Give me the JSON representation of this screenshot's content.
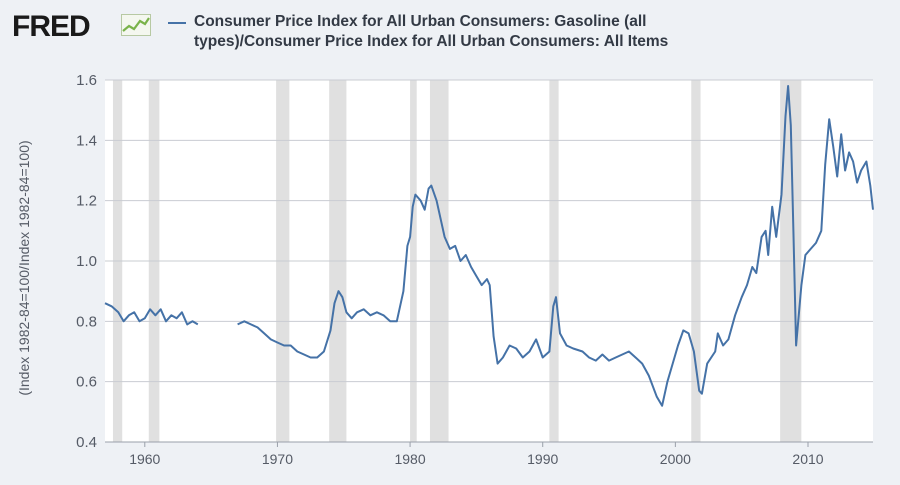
{
  "header": {
    "logo": "FRED",
    "title_line1": "Consumer Price Index for All Urban Consumers: Gasoline (all",
    "title_line2": "types)/Consumer Price Index for All Urban Consumers: All Items"
  },
  "colors": {
    "line": "#4572a7",
    "recession": "#e0e0e0",
    "plot_bg": "#ffffff",
    "frame_bg": "#eef1f5",
    "grid": "#c9ccd2",
    "logo_icon": "#7ab34a"
  },
  "chart_data": {
    "type": "line",
    "title": "Consumer Price Index for All Urban Consumers: Gasoline (all types)/Consumer Price Index for All Urban Consumers: All Items",
    "xlabel": "",
    "ylabel": "(Index 1982-84=100/Index 1982-84=100)",
    "xlim": [
      1957,
      2014.9
    ],
    "ylim": [
      0.4,
      1.6
    ],
    "xticks": [
      1960,
      1970,
      1980,
      1990,
      2000,
      2010
    ],
    "yticks": [
      0.4,
      0.6,
      0.8,
      1.0,
      1.2,
      1.4,
      1.6
    ],
    "ytick_labels": [
      "0.4",
      "0.6",
      "0.8",
      "1.0",
      "1.2",
      "1.4",
      "1.6"
    ],
    "grid": "horizontal",
    "recessions": [
      [
        1957.6,
        1958.3
      ],
      [
        1960.3,
        1961.1
      ],
      [
        1969.9,
        1970.9
      ],
      [
        1973.9,
        1975.2
      ],
      [
        1980.0,
        1980.5
      ],
      [
        1981.5,
        1982.9
      ],
      [
        1990.5,
        1991.2
      ],
      [
        2001.2,
        2001.9
      ],
      [
        2007.9,
        2009.5
      ]
    ],
    "series": [
      {
        "segments": [
          [
            [
              1957.0,
              0.86
            ],
            [
              1957.5,
              0.85
            ],
            [
              1958.0,
              0.83
            ],
            [
              1958.4,
              0.8
            ],
            [
              1958.8,
              0.82
            ],
            [
              1959.2,
              0.83
            ],
            [
              1959.6,
              0.8
            ],
            [
              1960.0,
              0.81
            ],
            [
              1960.4,
              0.84
            ],
            [
              1960.8,
              0.82
            ],
            [
              1961.2,
              0.84
            ],
            [
              1961.6,
              0.8
            ],
            [
              1962.0,
              0.82
            ],
            [
              1962.4,
              0.81
            ],
            [
              1962.8,
              0.83
            ],
            [
              1963.2,
              0.79
            ],
            [
              1963.6,
              0.8
            ],
            [
              1964.0,
              0.79
            ]
          ],
          [
            [
              1967.0,
              0.79
            ],
            [
              1967.5,
              0.8
            ],
            [
              1968.0,
              0.79
            ],
            [
              1968.5,
              0.78
            ],
            [
              1969.0,
              0.76
            ],
            [
              1969.5,
              0.74
            ],
            [
              1970.0,
              0.73
            ],
            [
              1970.5,
              0.72
            ],
            [
              1971.0,
              0.72
            ],
            [
              1971.5,
              0.7
            ],
            [
              1972.0,
              0.69
            ],
            [
              1972.5,
              0.68
            ],
            [
              1973.0,
              0.68
            ],
            [
              1973.5,
              0.7
            ],
            [
              1974.0,
              0.77
            ],
            [
              1974.3,
              0.86
            ],
            [
              1974.6,
              0.9
            ],
            [
              1974.9,
              0.88
            ],
            [
              1975.2,
              0.83
            ],
            [
              1975.6,
              0.81
            ],
            [
              1976.0,
              0.83
            ],
            [
              1976.5,
              0.84
            ],
            [
              1977.0,
              0.82
            ],
            [
              1977.5,
              0.83
            ],
            [
              1978.0,
              0.82
            ],
            [
              1978.5,
              0.8
            ],
            [
              1979.0,
              0.8
            ],
            [
              1979.5,
              0.9
            ],
            [
              1979.8,
              1.05
            ],
            [
              1980.0,
              1.08
            ],
            [
              1980.2,
              1.18
            ],
            [
              1980.4,
              1.22
            ],
            [
              1980.8,
              1.2
            ],
            [
              1981.1,
              1.17
            ],
            [
              1981.4,
              1.24
            ],
            [
              1981.6,
              1.25
            ],
            [
              1982.0,
              1.2
            ],
            [
              1982.3,
              1.14
            ],
            [
              1982.6,
              1.08
            ],
            [
              1983.0,
              1.04
            ],
            [
              1983.4,
              1.05
            ],
            [
              1983.8,
              1.0
            ],
            [
              1984.2,
              1.02
            ],
            [
              1984.6,
              0.98
            ],
            [
              1985.0,
              0.95
            ],
            [
              1985.4,
              0.92
            ],
            [
              1985.8,
              0.94
            ],
            [
              1986.0,
              0.92
            ],
            [
              1986.3,
              0.75
            ],
            [
              1986.6,
              0.66
            ],
            [
              1987.0,
              0.68
            ],
            [
              1987.5,
              0.72
            ],
            [
              1988.0,
              0.71
            ],
            [
              1988.5,
              0.68
            ],
            [
              1989.0,
              0.7
            ],
            [
              1989.5,
              0.74
            ],
            [
              1990.0,
              0.68
            ],
            [
              1990.5,
              0.7
            ],
            [
              1990.8,
              0.85
            ],
            [
              1991.0,
              0.88
            ],
            [
              1991.3,
              0.76
            ],
            [
              1991.8,
              0.72
            ],
            [
              1992.3,
              0.71
            ],
            [
              1993.0,
              0.7
            ],
            [
              1993.5,
              0.68
            ],
            [
              1994.0,
              0.67
            ],
            [
              1994.5,
              0.69
            ],
            [
              1995.0,
              0.67
            ],
            [
              1995.5,
              0.68
            ],
            [
              1996.0,
              0.69
            ],
            [
              1996.5,
              0.7
            ],
            [
              1997.0,
              0.68
            ],
            [
              1997.5,
              0.66
            ],
            [
              1998.0,
              0.62
            ],
            [
              1998.6,
              0.55
            ],
            [
              1999.0,
              0.52
            ],
            [
              1999.4,
              0.6
            ],
            [
              1999.8,
              0.66
            ],
            [
              2000.2,
              0.72
            ],
            [
              2000.6,
              0.77
            ],
            [
              2001.0,
              0.76
            ],
            [
              2001.4,
              0.7
            ],
            [
              2001.8,
              0.57
            ],
            [
              2002.0,
              0.56
            ],
            [
              2002.4,
              0.66
            ],
            [
              2003.0,
              0.7
            ],
            [
              2003.2,
              0.76
            ],
            [
              2003.6,
              0.72
            ],
            [
              2004.0,
              0.74
            ],
            [
              2004.5,
              0.82
            ],
            [
              2005.0,
              0.88
            ],
            [
              2005.4,
              0.92
            ],
            [
              2005.8,
              0.98
            ],
            [
              2006.1,
              0.96
            ],
            [
              2006.5,
              1.08
            ],
            [
              2006.8,
              1.1
            ],
            [
              2007.0,
              1.02
            ],
            [
              2007.3,
              1.18
            ],
            [
              2007.6,
              1.08
            ],
            [
              2008.0,
              1.22
            ],
            [
              2008.3,
              1.48
            ],
            [
              2008.5,
              1.58
            ],
            [
              2008.7,
              1.45
            ],
            [
              2008.9,
              1.1
            ],
            [
              2009.1,
              0.72
            ],
            [
              2009.5,
              0.92
            ],
            [
              2009.8,
              1.02
            ],
            [
              2010.2,
              1.04
            ],
            [
              2010.6,
              1.06
            ],
            [
              2011.0,
              1.1
            ],
            [
              2011.3,
              1.32
            ],
            [
              2011.6,
              1.47
            ],
            [
              2011.9,
              1.38
            ],
            [
              2012.2,
              1.28
            ],
            [
              2012.5,
              1.42
            ],
            [
              2012.8,
              1.3
            ],
            [
              2013.1,
              1.36
            ],
            [
              2013.4,
              1.33
            ],
            [
              2013.7,
              1.26
            ],
            [
              2014.0,
              1.3
            ],
            [
              2014.4,
              1.33
            ],
            [
              2014.7,
              1.25
            ],
            [
              2014.9,
              1.17
            ]
          ]
        ]
      }
    ]
  }
}
